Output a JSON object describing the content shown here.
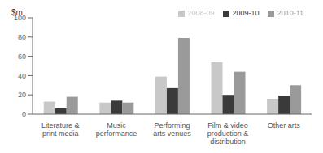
{
  "chart_data": {
    "type": "bar",
    "annotation": "$m",
    "categories": [
      "Literature &\nprint media",
      "Music\nperformance",
      "Performing\narts venues",
      "Film & video\nproduction &\ndistribution",
      "Other arts"
    ],
    "series": [
      {
        "name": "2008-09",
        "color": "#c8c8c8",
        "values": [
          13,
          12,
          39,
          54,
          16
        ]
      },
      {
        "name": "2009-10",
        "color": "#3a3a3a",
        "values": [
          6,
          14,
          27,
          20,
          19
        ]
      },
      {
        "name": "2010-11",
        "color": "#9a9a9a",
        "values": [
          18,
          12,
          79,
          44,
          30
        ]
      }
    ],
    "ylim": [
      0,
      100
    ],
    "yticks": [
      0,
      20,
      40,
      60,
      80,
      100
    ],
    "legend": "upper right",
    "grid": false
  }
}
